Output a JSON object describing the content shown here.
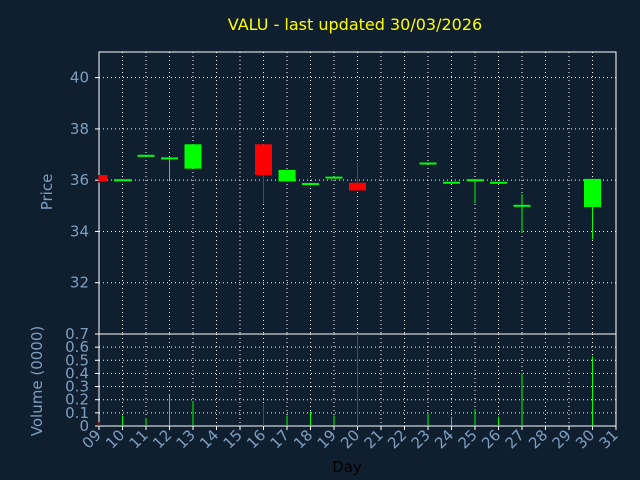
{
  "colors": {
    "background": "#0f1f2f",
    "title": "#ffff00",
    "axis_text": "#7f9fbf",
    "day_label": "#000000",
    "grid": "#ffffff",
    "up": "#00ff00",
    "down": "#ff0000"
  },
  "chart_data": {
    "type": "candlestick",
    "title": "VALU - last updated 30/03/2026",
    "xlabel": "Day",
    "price_panel": {
      "ylabel": "Price",
      "ylim": [
        30,
        41
      ],
      "yticks": [
        "32",
        "34",
        "36",
        "38",
        "40"
      ]
    },
    "volume_panel": {
      "ylabel": "Volume (0000)",
      "ylim": [
        0,
        0.7
      ],
      "yticks": [
        "0",
        "0.1",
        "0.2",
        "0.3",
        "0.4",
        "0.5",
        "0.6",
        "0.7"
      ]
    },
    "x_tick_labels": [
      "09",
      "10",
      "11",
      "12",
      "13",
      "14",
      "15",
      "16",
      "17",
      "18",
      "19",
      "20",
      "21",
      "22",
      "23",
      "24",
      "25",
      "26",
      "27",
      "28",
      "29",
      "30",
      "31"
    ],
    "grid": true,
    "candles": [
      {
        "day": "09",
        "open": 36.2,
        "close": 35.95,
        "high": 36.2,
        "low": 35.9,
        "volume": 0.03
      },
      {
        "day": "10",
        "open": 36.0,
        "close": 36.0,
        "high": 36.0,
        "low": 36.0,
        "volume": 0.08
      },
      {
        "day": "11",
        "open": 36.95,
        "close": 36.95,
        "high": 36.95,
        "low": 36.95,
        "volume": 0.06
      },
      {
        "day": "12",
        "open": 36.85,
        "close": 36.85,
        "high": 36.9,
        "low": 36.0,
        "volume": 0.24
      },
      {
        "day": "13",
        "open": 36.45,
        "close": 37.4,
        "high": 37.4,
        "low": 36.45,
        "volume": 0.19
      },
      {
        "day": "16",
        "open": 37.4,
        "close": 36.2,
        "high": 37.4,
        "low": 35.1,
        "volume": 0.17
      },
      {
        "day": "17",
        "open": 35.95,
        "close": 36.4,
        "high": 36.4,
        "low": 35.95,
        "volume": 0.08
      },
      {
        "day": "18",
        "open": 35.85,
        "close": 35.85,
        "high": 35.9,
        "low": 35.8,
        "volume": 0.11
      },
      {
        "day": "19",
        "open": 36.1,
        "close": 36.1,
        "high": 36.1,
        "low": 36.1,
        "volume": 0.08
      },
      {
        "day": "20",
        "open": 35.9,
        "close": 35.6,
        "high": 36.7,
        "low": 35.6,
        "volume": 0.7
      },
      {
        "day": "23",
        "open": 36.65,
        "close": 36.65,
        "high": 36.65,
        "low": 36.65,
        "volume": 0.1
      },
      {
        "day": "24",
        "open": 35.9,
        "close": 35.9,
        "high": 35.9,
        "low": 35.9,
        "volume": 0.07
      },
      {
        "day": "25",
        "open": 36.0,
        "close": 36.0,
        "high": 36.0,
        "low": 35.1,
        "volume": 0.13
      },
      {
        "day": "26",
        "open": 35.9,
        "close": 35.9,
        "high": 35.9,
        "low": 35.9,
        "volume": 0.07
      },
      {
        "day": "27",
        "open": 35.0,
        "close": 35.0,
        "high": 35.45,
        "low": 33.95,
        "volume": 0.4
      },
      {
        "day": "30",
        "open": 34.95,
        "close": 36.05,
        "high": 36.05,
        "low": 33.7,
        "volume": 0.53
      }
    ]
  }
}
